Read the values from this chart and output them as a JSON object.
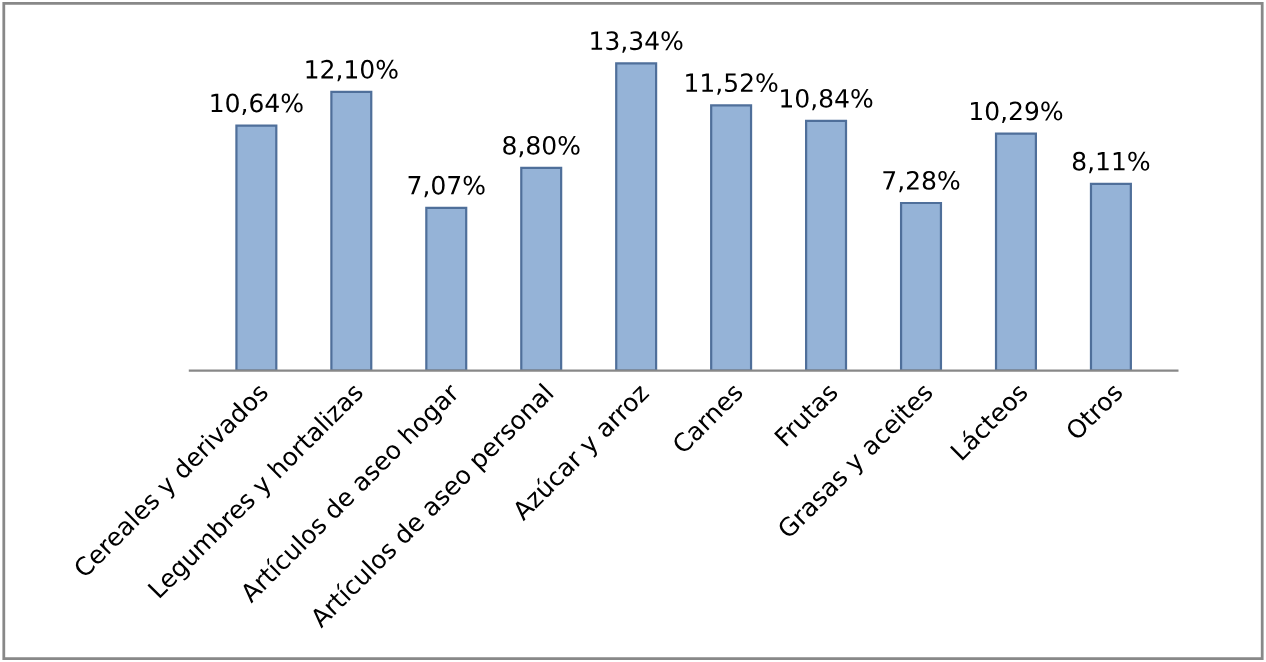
{
  "chart_data": {
    "type": "bar",
    "categories": [
      "Cereales y derivados",
      "Legumbres y hortalizas",
      "Artículos de aseo hogar",
      "Artículos de aseo personal",
      "Azúcar y arroz",
      "Carnes",
      "Frutas",
      "Grasas y aceites",
      "Lácteos",
      "Otros"
    ],
    "values": [
      10.64,
      12.1,
      7.07,
      8.8,
      13.34,
      11.52,
      10.84,
      7.28,
      10.29,
      8.11
    ],
    "value_labels": [
      "10,64%",
      "12,10%",
      "7,07%",
      "8,80%",
      "13,34%",
      "11,52%",
      "10,84%",
      "7,28%",
      "10,29%",
      "8,11%"
    ],
    "color": "#95b3d7"
  }
}
